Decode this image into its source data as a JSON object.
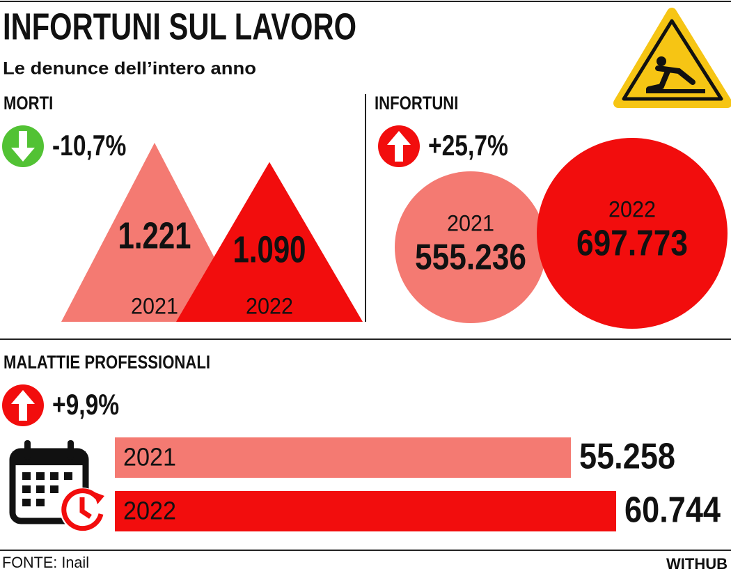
{
  "header": {
    "title": "INFORTUNI SUL LAVORO",
    "subtitle": "Le denunce dell’intero anno"
  },
  "chart_data": [
    {
      "type": "triangle",
      "title": "MORTI",
      "change": {
        "value": -10.7,
        "label": "-10,7%"
      },
      "categories": [
        "2021",
        "2022"
      ],
      "values": [
        1221,
        1090
      ],
      "value_labels": [
        "1.221",
        "1.090"
      ],
      "colors": [
        "#f47a72",
        "#f20d0d"
      ]
    },
    {
      "type": "bubble",
      "title": "INFORTUNI",
      "change": {
        "value": 25.7,
        "label": "+25,7%"
      },
      "categories": [
        "2021",
        "2022"
      ],
      "values": [
        555236,
        697773
      ],
      "value_labels": [
        "555.236",
        "697.773"
      ],
      "colors": [
        "#f47a72",
        "#f20d0d"
      ]
    },
    {
      "type": "bar",
      "title": "MALATTIE PROFESSIONALI",
      "change": {
        "value": 9.9,
        "label": "+9,9%"
      },
      "categories": [
        "2021",
        "2022"
      ],
      "values": [
        55258,
        60744
      ],
      "value_labels": [
        "55.258",
        "60.744"
      ],
      "colors": [
        "#f47a72",
        "#f20d0d"
      ]
    }
  ],
  "footer": {
    "source": "FONTE: Inail",
    "brand": "WITHUB"
  }
}
